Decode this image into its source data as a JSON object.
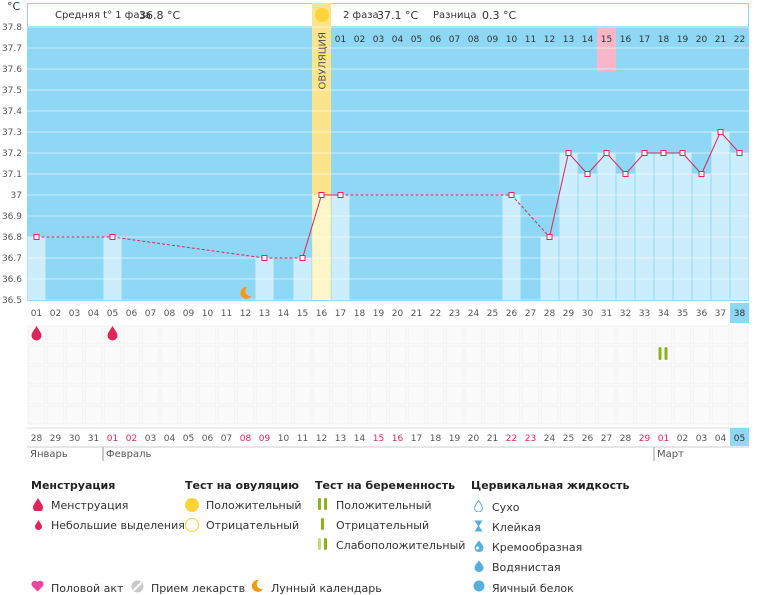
{
  "header": {
    "unit_label": "°C",
    "phase1_label": "Средняя t° 1 фаза",
    "phase1_value": "36.8 °C",
    "phase2_label": "2 фаза",
    "phase2_value": "37.1 °C",
    "diff_label": "Разница",
    "diff_value": "0.3 °C"
  },
  "chart_data": {
    "type": "line",
    "ylabel": "°C",
    "ylim": [
      36.5,
      37.8
    ],
    "y_ticks": [
      "36.5",
      "36.6",
      "36.7",
      "36.8",
      "36.9",
      "37",
      "37.1",
      "37.2",
      "37.3",
      "37.4",
      "37.5",
      "37.6",
      "37.7",
      "37.8"
    ],
    "ovulation_label": "ОВУЛЯЦИЯ",
    "ovulation_day": 16,
    "highlight_day": 31,
    "cycle_days": [
      "01",
      "02",
      "03",
      "04",
      "05",
      "06",
      "07",
      "08",
      "09",
      "10",
      "11",
      "12",
      "13",
      "14",
      "15",
      "16",
      "17",
      "18",
      "19",
      "20",
      "21",
      "22",
      "23",
      "24",
      "25",
      "26",
      "27",
      "28",
      "29",
      "30",
      "31",
      "32",
      "33",
      "34",
      "35",
      "36",
      "37",
      "38"
    ],
    "dpo_days": [
      "",
      "",
      "",
      "",
      "",
      "",
      "",
      "",
      "",
      "",
      "",
      "",
      "",
      "",
      "",
      "",
      "01",
      "02",
      "03",
      "04",
      "05",
      "06",
      "07",
      "08",
      "09",
      "10",
      "11",
      "12",
      "13",
      "14",
      "15",
      "16",
      "17",
      "18",
      "19",
      "20",
      "21",
      "22"
    ],
    "dates": [
      "28",
      "29",
      "30",
      "31",
      "01",
      "02",
      "03",
      "04",
      "05",
      "06",
      "07",
      "08",
      "09",
      "10",
      "11",
      "12",
      "13",
      "14",
      "15",
      "16",
      "17",
      "18",
      "19",
      "20",
      "21",
      "22",
      "23",
      "24",
      "25",
      "26",
      "27",
      "28",
      "29",
      "01",
      "02",
      "03",
      "04",
      "05"
    ],
    "red_date_indexes": [
      4,
      5,
      11,
      12,
      18,
      19,
      25,
      26,
      32,
      33
    ],
    "months": [
      "Январь",
      "Февраль",
      "Март"
    ],
    "temps": [
      36.8,
      null,
      null,
      null,
      36.8,
      null,
      null,
      null,
      null,
      null,
      null,
      null,
      36.7,
      null,
      36.7,
      37.0,
      37.0,
      null,
      null,
      null,
      null,
      null,
      null,
      null,
      null,
      37.0,
      null,
      36.8,
      37.2,
      37.1,
      37.2,
      37.1,
      37.2,
      37.2,
      37.2,
      37.1,
      37.3,
      37.2
    ],
    "menstruation_days": [
      1,
      5
    ],
    "moon_day": 12,
    "pregnancy_test_day": 34
  },
  "legend": {
    "menstruation_title": "Менструация",
    "menstruation": "Менструация",
    "spotting": "Небольшие выделения",
    "ovulation_test_title": "Тест на овуляцию",
    "ov_positive": "Положительный",
    "ov_negative": "Отрицательный",
    "pregnancy_test_title": "Тест на беременность",
    "pr_positive": "Положительный",
    "pr_negative": "Отрицательный",
    "pr_weak": "Слабоположительный",
    "fluid_title": "Цервикальная жидкость",
    "dry": "Сухо",
    "sticky": "Клейкая",
    "creamy": "Кремообразная",
    "watery": "Водянистая",
    "egg_white": "Яичный белок",
    "intercourse": "Половой акт",
    "medication": "Прием лекарств",
    "lunar": "Лунный календарь"
  },
  "colors": {
    "sky": "#8fd8f5",
    "bar": "#cceefc",
    "ovulation": "#fce48c",
    "highlight": "#f9b6c8",
    "line": "#e0255a",
    "red_date": "#e0255a",
    "last_cell": "#8fd8f5"
  }
}
